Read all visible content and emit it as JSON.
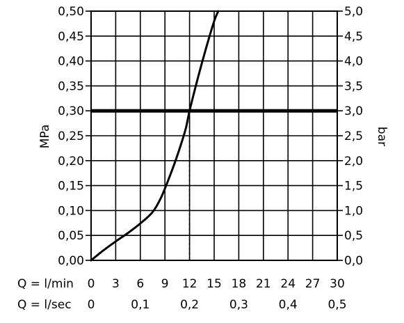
{
  "chart_data": {
    "type": "line",
    "title": "",
    "x": {
      "flow_lmin_label": "Q = l/min",
      "flow_lmin_ticks": [
        "0",
        "3",
        "6",
        "9",
        "12",
        "15",
        "18",
        "21",
        "24",
        "27",
        "30"
      ],
      "flow_lsec_label": "Q = l/sec",
      "flow_lsec_ticks": [
        "0",
        "0,1",
        "0,2",
        "0,3",
        "0,4",
        "0,5"
      ],
      "range_lmin": [
        0,
        30
      ]
    },
    "y_left": {
      "label": "MPa",
      "range": [
        0,
        0.5
      ],
      "ticks": [
        "0,00",
        "0,05",
        "0,10",
        "0,15",
        "0,20",
        "0,25",
        "0,30",
        "0,35",
        "0,40",
        "0,45",
        "0,50"
      ]
    },
    "y_right": {
      "label": "bar",
      "range": [
        0,
        5
      ],
      "ticks": [
        "0,0",
        "0,5",
        "1,0",
        "1,5",
        "2,0",
        "2,5",
        "3,0",
        "3,5",
        "4,0",
        "4,5",
        "5,0"
      ]
    },
    "grid": true,
    "reference_line": {
      "y_mpa": 0.3
    },
    "operating_point": {
      "x_lmin": 12,
      "y_mpa": 0.3
    },
    "series": [
      {
        "x": [
          0,
          1.5,
          3,
          4.5,
          6,
          7.5,
          8.5,
          9.5,
          10.5,
          11.5,
          12,
          13,
          14,
          15,
          15.5
        ],
        "y": [
          0,
          0.02,
          0.038,
          0.055,
          0.074,
          0.097,
          0.125,
          0.165,
          0.21,
          0.262,
          0.3,
          0.365,
          0.425,
          0.48,
          0.5
        ]
      }
    ]
  }
}
